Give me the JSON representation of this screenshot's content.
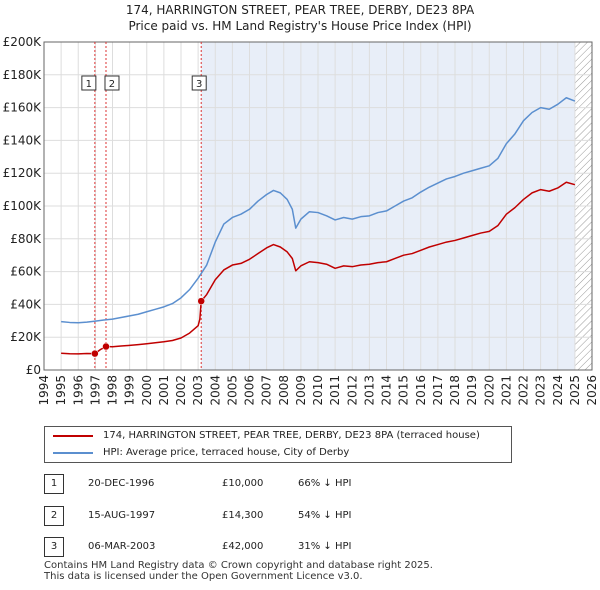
{
  "title_line1": "174, HARRINGTON STREET, PEAR TREE, DERBY, DE23 8PA",
  "title_line2": "Price paid vs. HM Land Registry's House Price Index (HPI)",
  "colors": {
    "property": "#c00000",
    "hpi": "#5b8fcf",
    "shade": "#e8eef8",
    "vline": "#dd3333",
    "hatch": "#999999"
  },
  "legend": {
    "property_label": "174, HARRINGTON STREET, PEAR TREE, DERBY, DE23 8PA (terraced house)",
    "hpi_label": "HPI: Average price, terraced house, City of Derby"
  },
  "transactions": [
    {
      "num": "1",
      "date": "20-DEC-1996",
      "price": "£10,000",
      "hpi_diff": "66% ↓ HPI"
    },
    {
      "num": "2",
      "date": "15-AUG-1997",
      "price": "£14,300",
      "hpi_diff": "54% ↓ HPI"
    },
    {
      "num": "3",
      "date": "06-MAR-2003",
      "price": "£42,000",
      "hpi_diff": "31% ↓ HPI"
    }
  ],
  "footer_line1": "Contains HM Land Registry data © Crown copyright and database right 2025.",
  "footer_line2": "This data is licensed under the Open Government Licence v3.0.",
  "chart_data": {
    "type": "line",
    "title": "174, HARRINGTON STREET, PEAR TREE, DERBY, DE23 8PA — Price paid vs. HM Land Registry's House Price Index (HPI)",
    "xlim": [
      1994,
      2026
    ],
    "ylim": [
      0,
      200000
    ],
    "x_ticks": [
      1994,
      1995,
      1996,
      1997,
      1998,
      1999,
      2000,
      2001,
      2002,
      2003,
      2004,
      2005,
      2006,
      2007,
      2008,
      2009,
      2010,
      2011,
      2012,
      2013,
      2014,
      2015,
      2016,
      2017,
      2018,
      2019,
      2020,
      2021,
      2022,
      2023,
      2024,
      2025,
      2026
    ],
    "y_ticks": [
      {
        "value": 0,
        "label": "£0"
      },
      {
        "value": 20000,
        "label": "£20K"
      },
      {
        "value": 40000,
        "label": "£40K"
      },
      {
        "value": 60000,
        "label": "£60K"
      },
      {
        "value": 80000,
        "label": "£80K"
      },
      {
        "value": 100000,
        "label": "£100K"
      },
      {
        "value": 120000,
        "label": "£120K"
      },
      {
        "value": 140000,
        "label": "£140K"
      },
      {
        "value": 160000,
        "label": "£160K"
      },
      {
        "value": 180000,
        "label": "£180K"
      },
      {
        "value": 200000,
        "label": "£200K"
      }
    ],
    "shaded_from": 2003.18,
    "hatched_from": 2025.0,
    "markers": [
      {
        "label": "1",
        "x": 1996.97,
        "y": 10000
      },
      {
        "label": "2",
        "x": 1997.62,
        "y": 14300
      },
      {
        "label": "3",
        "x": 2003.18,
        "y": 42000
      }
    ],
    "series": [
      {
        "name": "174, HARRINGTON STREET, PEAR TREE, DERBY, DE23 8PA (terraced house)",
        "points": [
          [
            1995,
            10200
          ],
          [
            1995.5,
            9900
          ],
          [
            1996,
            9800
          ],
          [
            1996.5,
            10100
          ],
          [
            1996.97,
            10000
          ],
          [
            1997.3,
            12500
          ],
          [
            1997.62,
            14300
          ],
          [
            1998,
            14200
          ],
          [
            1998.5,
            14600
          ],
          [
            1999,
            15000
          ],
          [
            1999.5,
            15500
          ],
          [
            2000,
            16000
          ],
          [
            2000.5,
            16600
          ],
          [
            2001,
            17200
          ],
          [
            2001.5,
            18000
          ],
          [
            2002,
            19500
          ],
          [
            2002.5,
            22500
          ],
          [
            2003.0,
            27000
          ],
          [
            2003.1,
            31000
          ],
          [
            2003.18,
            42000
          ],
          [
            2003.5,
            46000
          ],
          [
            2004,
            55000
          ],
          [
            2004.5,
            61000
          ],
          [
            2005,
            64000
          ],
          [
            2005.5,
            65000
          ],
          [
            2006,
            67500
          ],
          [
            2006.5,
            71000
          ],
          [
            2007,
            74500
          ],
          [
            2007.4,
            76500
          ],
          [
            2007.8,
            75000
          ],
          [
            2008.2,
            72000
          ],
          [
            2008.5,
            68000
          ],
          [
            2008.7,
            60500
          ],
          [
            2009,
            63500
          ],
          [
            2009.5,
            66000
          ],
          [
            2010,
            65500
          ],
          [
            2010.5,
            64500
          ],
          [
            2011,
            62000
          ],
          [
            2011.5,
            63500
          ],
          [
            2012,
            63000
          ],
          [
            2012.5,
            64000
          ],
          [
            2013,
            64500
          ],
          [
            2013.5,
            65500
          ],
          [
            2014,
            66000
          ],
          [
            2014.5,
            68000
          ],
          [
            2015,
            70000
          ],
          [
            2015.5,
            71000
          ],
          [
            2016,
            73000
          ],
          [
            2016.5,
            75000
          ],
          [
            2017,
            76500
          ],
          [
            2017.5,
            78000
          ],
          [
            2018,
            79000
          ],
          [
            2018.5,
            80500
          ],
          [
            2019,
            82000
          ],
          [
            2019.5,
            83500
          ],
          [
            2020,
            84500
          ],
          [
            2020.5,
            88000
          ],
          [
            2021,
            95000
          ],
          [
            2021.5,
            99000
          ],
          [
            2022,
            104000
          ],
          [
            2022.5,
            108000
          ],
          [
            2023,
            110000
          ],
          [
            2023.5,
            109000
          ],
          [
            2024,
            111000
          ],
          [
            2024.5,
            114500
          ],
          [
            2025,
            113000
          ]
        ]
      },
      {
        "name": "HPI: Average price, terraced house, City of Derby",
        "points": [
          [
            1995,
            29500
          ],
          [
            1995.5,
            29000
          ],
          [
            1996,
            28800
          ],
          [
            1996.5,
            29200
          ],
          [
            1997,
            29800
          ],
          [
            1997.5,
            30500
          ],
          [
            1998,
            31000
          ],
          [
            1998.5,
            32000
          ],
          [
            1999,
            33000
          ],
          [
            1999.5,
            34000
          ],
          [
            2000,
            35500
          ],
          [
            2000.5,
            37000
          ],
          [
            2001,
            38500
          ],
          [
            2001.5,
            40500
          ],
          [
            2002,
            44000
          ],
          [
            2002.5,
            49000
          ],
          [
            2003,
            56000
          ],
          [
            2003.5,
            64000
          ],
          [
            2004,
            78000
          ],
          [
            2004.5,
            89000
          ],
          [
            2005,
            93000
          ],
          [
            2005.5,
            95000
          ],
          [
            2006,
            98000
          ],
          [
            2006.5,
            103000
          ],
          [
            2007,
            107000
          ],
          [
            2007.4,
            109500
          ],
          [
            2007.8,
            108000
          ],
          [
            2008.2,
            104000
          ],
          [
            2008.5,
            98000
          ],
          [
            2008.7,
            86500
          ],
          [
            2009,
            92000
          ],
          [
            2009.5,
            96500
          ],
          [
            2010,
            96000
          ],
          [
            2010.5,
            94000
          ],
          [
            2011,
            91500
          ],
          [
            2011.5,
            93000
          ],
          [
            2012,
            92000
          ],
          [
            2012.5,
            93500
          ],
          [
            2013,
            94000
          ],
          [
            2013.5,
            96000
          ],
          [
            2014,
            97000
          ],
          [
            2014.5,
            100000
          ],
          [
            2015,
            103000
          ],
          [
            2015.5,
            105000
          ],
          [
            2016,
            108500
          ],
          [
            2016.5,
            111500
          ],
          [
            2017,
            114000
          ],
          [
            2017.5,
            116500
          ],
          [
            2018,
            118000
          ],
          [
            2018.5,
            120000
          ],
          [
            2019,
            121500
          ],
          [
            2019.5,
            123000
          ],
          [
            2020,
            124500
          ],
          [
            2020.5,
            129000
          ],
          [
            2021,
            138000
          ],
          [
            2021.5,
            144000
          ],
          [
            2022,
            152000
          ],
          [
            2022.5,
            157000
          ],
          [
            2023,
            160000
          ],
          [
            2023.5,
            159000
          ],
          [
            2024,
            162000
          ],
          [
            2024.5,
            166000
          ],
          [
            2025,
            164000
          ]
        ]
      }
    ]
  }
}
